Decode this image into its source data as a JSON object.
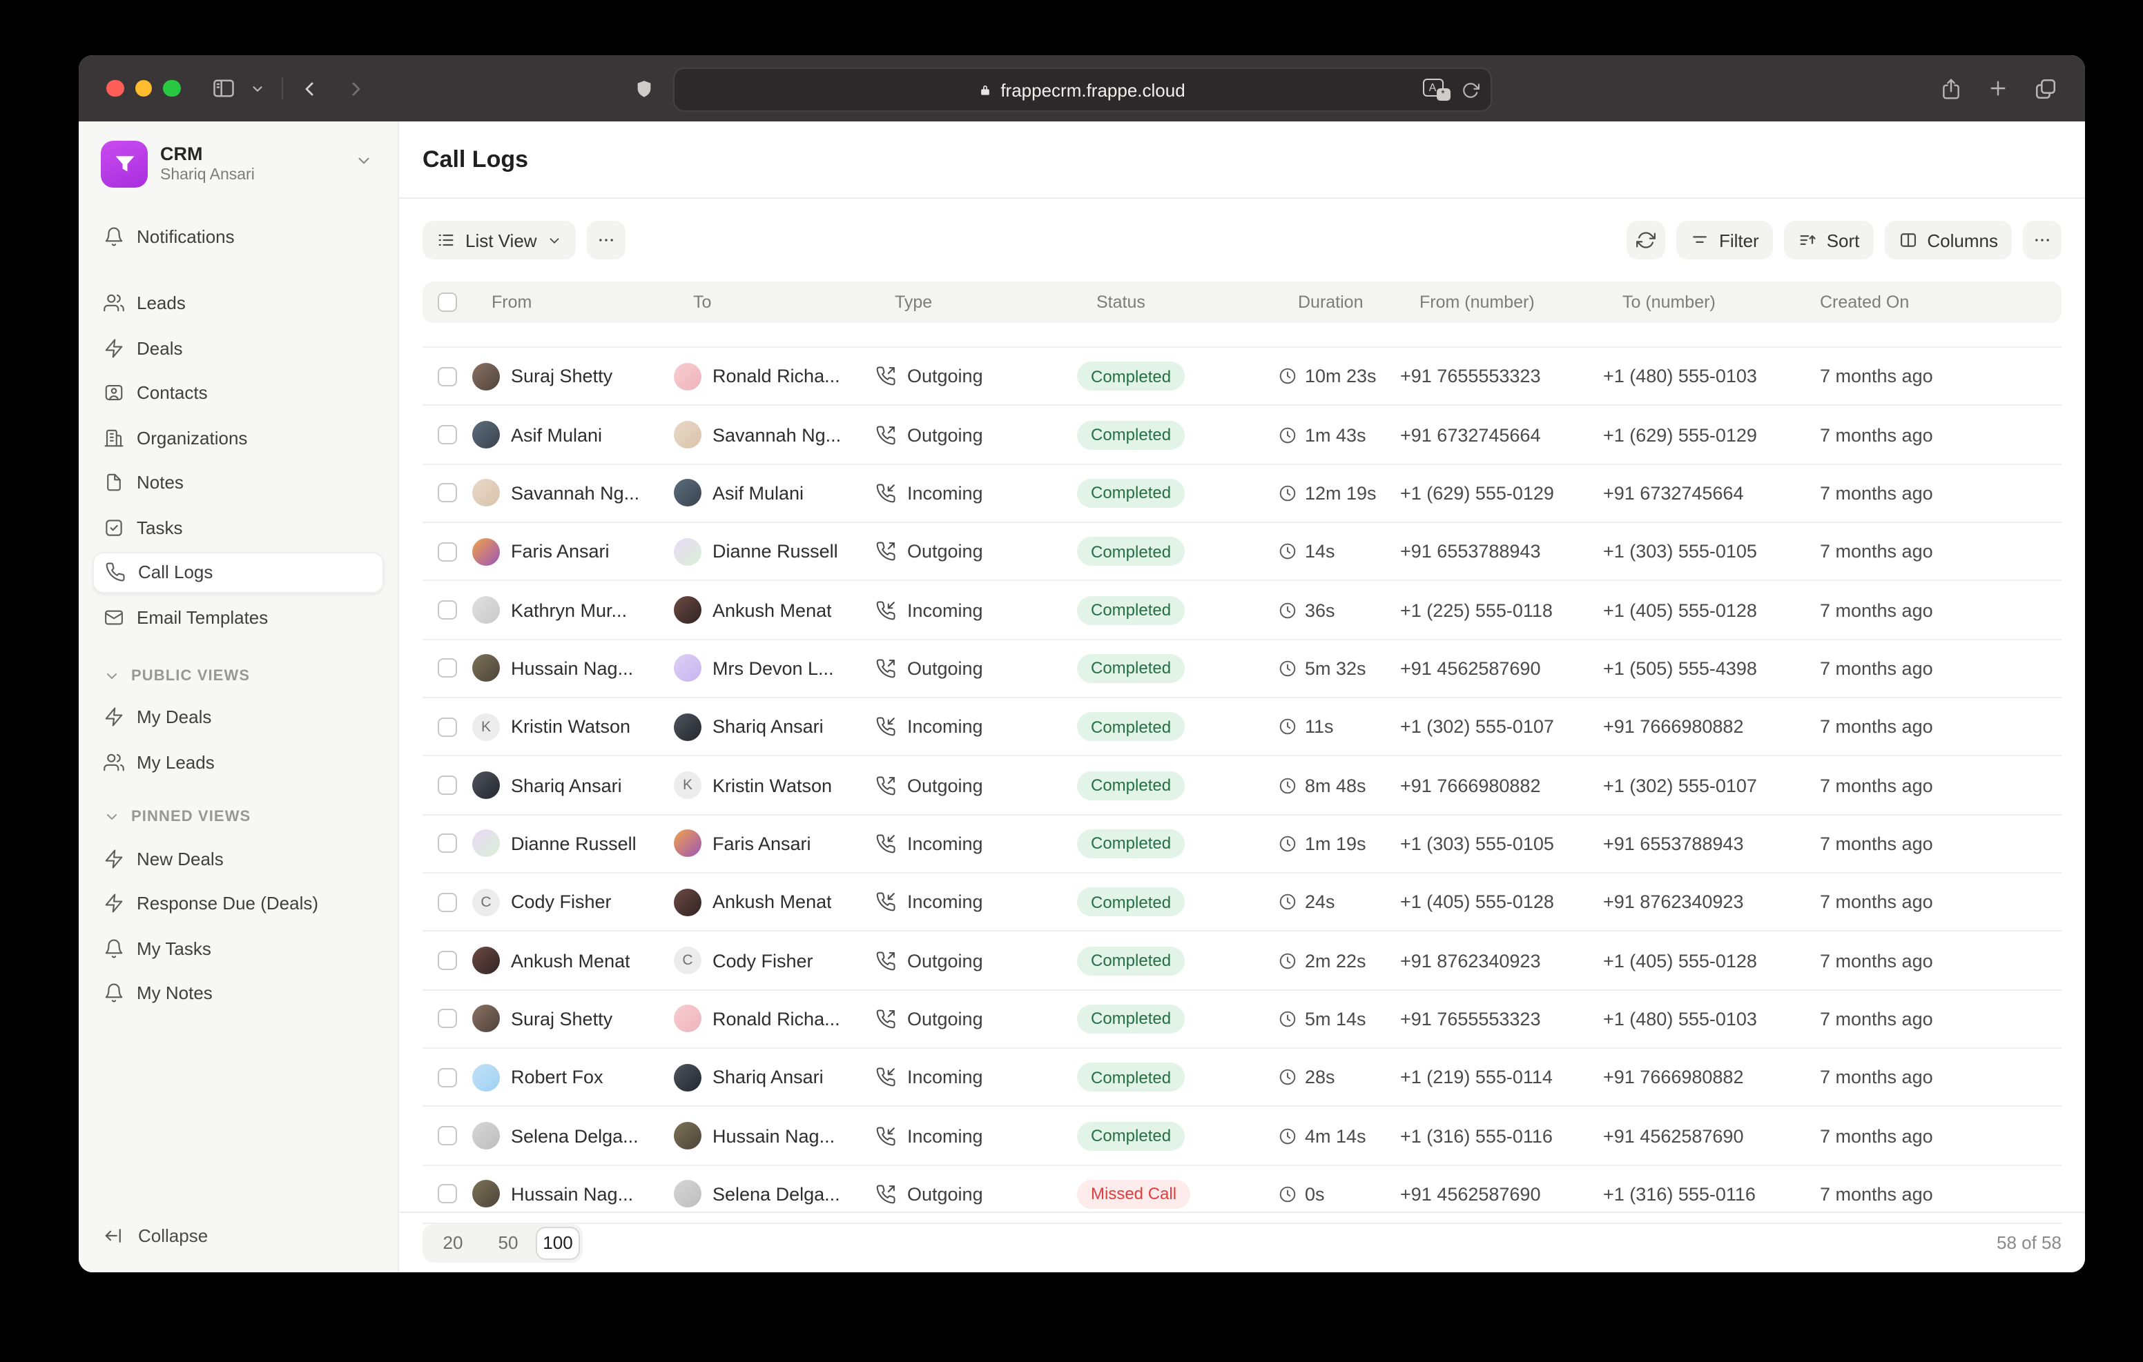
{
  "titlebar": {
    "url": "frappecrm.frappe.cloud"
  },
  "sidebar": {
    "workspace": {
      "title": "CRM",
      "subtitle": "Shariq Ansari"
    },
    "notifications": {
      "label": "Notifications",
      "icon": "bell"
    },
    "main_items": [
      {
        "label": "Leads",
        "icon": "users"
      },
      {
        "label": "Deals",
        "icon": "zap"
      },
      {
        "label": "Contacts",
        "icon": "contact"
      },
      {
        "label": "Organizations",
        "icon": "building"
      },
      {
        "label": "Notes",
        "icon": "file"
      },
      {
        "label": "Tasks",
        "icon": "check"
      },
      {
        "label": "Call Logs",
        "icon": "phone",
        "active": true
      },
      {
        "label": "Email Templates",
        "icon": "mail"
      }
    ],
    "sections": [
      {
        "title": "PUBLIC VIEWS",
        "items": [
          {
            "label": "My Deals",
            "icon": "zap"
          },
          {
            "label": "My Leads",
            "icon": "users"
          }
        ]
      },
      {
        "title": "PINNED VIEWS",
        "items": [
          {
            "label": "New Deals",
            "icon": "zap"
          },
          {
            "label": "Response Due (Deals)",
            "icon": "zap"
          },
          {
            "label": "My Tasks",
            "icon": "bell"
          },
          {
            "label": "My Notes",
            "icon": "bell"
          }
        ]
      }
    ],
    "collapse_label": "Collapse"
  },
  "header": {
    "title": "Call Logs"
  },
  "toolbar": {
    "view_label": "List View",
    "filter": "Filter",
    "sort": "Sort",
    "columns": "Columns"
  },
  "table": {
    "columns": [
      "",
      "From",
      "To",
      "Type",
      "Status",
      "Duration",
      "From (number)",
      "To (number)",
      "Created On"
    ],
    "rows": [
      {
        "from": {
          "name": "Suraj Shetty",
          "avatar": {
            "kind": "photo",
            "colors": [
              "#8a7263",
              "#4f423b"
            ]
          }
        },
        "to": {
          "name": "Ronald Richa...",
          "avatar": {
            "kind": "photo",
            "colors": [
              "#f7cdd1",
              "#eeb4ba"
            ]
          }
        },
        "type": "Outgoing",
        "status": "Completed",
        "status_kind": "success",
        "duration": "10m 23s",
        "from_number": "+91 7655553323",
        "to_number": "+1 (480) 555-0103",
        "created": "7 months ago"
      },
      {
        "from": {
          "name": "Asif Mulani",
          "avatar": {
            "kind": "photo",
            "colors": [
              "#5d6d7c",
              "#39434e"
            ]
          }
        },
        "to": {
          "name": "Savannah Ng...",
          "avatar": {
            "kind": "photo",
            "colors": [
              "#e8d9c8",
              "#d9c3ab"
            ]
          }
        },
        "type": "Outgoing",
        "status": "Completed",
        "status_kind": "success",
        "duration": "1m 43s",
        "from_number": "+91 6732745664",
        "to_number": "+1 (629) 555-0129",
        "created": "7 months ago"
      },
      {
        "from": {
          "name": "Savannah Ng...",
          "avatar": {
            "kind": "photo",
            "colors": [
              "#e8d9c8",
              "#d9c3ab"
            ]
          }
        },
        "to": {
          "name": "Asif Mulani",
          "avatar": {
            "kind": "photo",
            "colors": [
              "#5d6d7c",
              "#39434e"
            ]
          }
        },
        "type": "Incoming",
        "status": "Completed",
        "status_kind": "success",
        "duration": "12m 19s",
        "from_number": "+1 (629) 555-0129",
        "to_number": "+91 6732745664",
        "created": "7 months ago"
      },
      {
        "from": {
          "name": "Faris Ansari",
          "avatar": {
            "kind": "photo",
            "colors": [
              "#f0a24a",
              "#9c55b8"
            ]
          }
        },
        "to": {
          "name": "Dianne Russell",
          "avatar": {
            "kind": "photo",
            "colors": [
              "#ead9f8",
              "#d9f0d4"
            ]
          }
        },
        "type": "Outgoing",
        "status": "Completed",
        "status_kind": "success",
        "duration": "14s",
        "from_number": "+91 6553788943",
        "to_number": "+1 (303) 555-0105",
        "created": "7 months ago"
      },
      {
        "from": {
          "name": "Kathryn Mur...",
          "avatar": {
            "kind": "photo",
            "colors": [
              "#e0e0e0",
              "#c9c9c9"
            ]
          }
        },
        "to": {
          "name": "Ankush Menat",
          "avatar": {
            "kind": "photo",
            "colors": [
              "#6d4a45",
              "#2f2422"
            ]
          }
        },
        "type": "Incoming",
        "status": "Completed",
        "status_kind": "success",
        "duration": "36s",
        "from_number": "+1 (225) 555-0118",
        "to_number": "+1 (405) 555-0128",
        "created": "7 months ago"
      },
      {
        "from": {
          "name": "Hussain Nag...",
          "avatar": {
            "kind": "photo",
            "colors": [
              "#7d7257",
              "#4c443a"
            ]
          }
        },
        "to": {
          "name": "Mrs Devon L...",
          "avatar": {
            "kind": "photo",
            "colors": [
              "#ddd0f5",
              "#c5b4ef"
            ]
          }
        },
        "type": "Outgoing",
        "status": "Completed",
        "status_kind": "success",
        "duration": "5m 32s",
        "from_number": "+91 4562587690",
        "to_number": "+1 (505) 555-4398",
        "created": "7 months ago"
      },
      {
        "from": {
          "name": "Kristin Watson",
          "avatar": {
            "kind": "letter",
            "letter": "K",
            "bg": "#ececec"
          }
        },
        "to": {
          "name": "Shariq Ansari",
          "avatar": {
            "kind": "photo",
            "colors": [
              "#4e545e",
              "#23272e"
            ]
          }
        },
        "type": "Incoming",
        "status": "Completed",
        "status_kind": "success",
        "duration": "11s",
        "from_number": "+1 (302) 555-0107",
        "to_number": "+91 7666980882",
        "created": "7 months ago"
      },
      {
        "from": {
          "name": "Shariq Ansari",
          "avatar": {
            "kind": "photo",
            "colors": [
              "#4e545e",
              "#23272e"
            ]
          }
        },
        "to": {
          "name": "Kristin Watson",
          "avatar": {
            "kind": "letter",
            "letter": "K",
            "bg": "#ececec"
          }
        },
        "type": "Outgoing",
        "status": "Completed",
        "status_kind": "success",
        "duration": "8m 48s",
        "from_number": "+91 7666980882",
        "to_number": "+1 (302) 555-0107",
        "created": "7 months ago"
      },
      {
        "from": {
          "name": "Dianne Russell",
          "avatar": {
            "kind": "photo",
            "colors": [
              "#ead9f8",
              "#d9f0d4"
            ]
          }
        },
        "to": {
          "name": "Faris Ansari",
          "avatar": {
            "kind": "photo",
            "colors": [
              "#f0a24a",
              "#9c55b8"
            ]
          }
        },
        "type": "Incoming",
        "status": "Completed",
        "status_kind": "success",
        "duration": "1m 19s",
        "from_number": "+1 (303) 555-0105",
        "to_number": "+91 6553788943",
        "created": "7 months ago"
      },
      {
        "from": {
          "name": "Cody Fisher",
          "avatar": {
            "kind": "letter",
            "letter": "C",
            "bg": "#ececec"
          }
        },
        "to": {
          "name": "Ankush Menat",
          "avatar": {
            "kind": "photo",
            "colors": [
              "#6d4a45",
              "#2f2422"
            ]
          }
        },
        "type": "Incoming",
        "status": "Completed",
        "status_kind": "success",
        "duration": "24s",
        "from_number": "+1 (405) 555-0128",
        "to_number": "+91 8762340923",
        "created": "7 months ago"
      },
      {
        "from": {
          "name": "Ankush Menat",
          "avatar": {
            "kind": "photo",
            "colors": [
              "#6d4a45",
              "#2f2422"
            ]
          }
        },
        "to": {
          "name": "Cody Fisher",
          "avatar": {
            "kind": "letter",
            "letter": "C",
            "bg": "#ececec"
          }
        },
        "type": "Outgoing",
        "status": "Completed",
        "status_kind": "success",
        "duration": "2m 22s",
        "from_number": "+91 8762340923",
        "to_number": "+1 (405) 555-0128",
        "created": "7 months ago"
      },
      {
        "from": {
          "name": "Suraj Shetty",
          "avatar": {
            "kind": "photo",
            "colors": [
              "#8a7263",
              "#4f423b"
            ]
          }
        },
        "to": {
          "name": "Ronald Richa...",
          "avatar": {
            "kind": "photo",
            "colors": [
              "#f7cdd1",
              "#eeb4ba"
            ]
          }
        },
        "type": "Outgoing",
        "status": "Completed",
        "status_kind": "success",
        "duration": "5m 14s",
        "from_number": "+91 7655553323",
        "to_number": "+1 (480) 555-0103",
        "created": "7 months ago"
      },
      {
        "from": {
          "name": "Robert Fox",
          "avatar": {
            "kind": "photo",
            "colors": [
              "#c2e2f7",
              "#9fd0f2"
            ]
          }
        },
        "to": {
          "name": "Shariq Ansari",
          "avatar": {
            "kind": "photo",
            "colors": [
              "#4e545e",
              "#23272e"
            ]
          }
        },
        "type": "Incoming",
        "status": "Completed",
        "status_kind": "success",
        "duration": "28s",
        "from_number": "+1 (219) 555-0114",
        "to_number": "+91 7666980882",
        "created": "7 months ago"
      },
      {
        "from": {
          "name": "Selena Delga...",
          "avatar": {
            "kind": "photo",
            "colors": [
              "#d6d6d6",
              "#bdbdbd"
            ]
          }
        },
        "to": {
          "name": "Hussain Nag...",
          "avatar": {
            "kind": "photo",
            "colors": [
              "#7d7257",
              "#4c443a"
            ]
          }
        },
        "type": "Incoming",
        "status": "Completed",
        "status_kind": "success",
        "duration": "4m 14s",
        "from_number": "+1 (316) 555-0116",
        "to_number": "+91 4562587690",
        "created": "7 months ago"
      },
      {
        "from": {
          "name": "Hussain Nag...",
          "avatar": {
            "kind": "photo",
            "colors": [
              "#7d7257",
              "#4c443a"
            ]
          }
        },
        "to": {
          "name": "Selena Delga...",
          "avatar": {
            "kind": "photo",
            "colors": [
              "#d6d6d6",
              "#bdbdbd"
            ]
          }
        },
        "type": "Outgoing",
        "status": "Missed Call",
        "status_kind": "danger",
        "duration": "0s",
        "from_number": "+91 4562587690",
        "to_number": "+1 (316) 555-0116",
        "created": "7 months ago"
      }
    ]
  },
  "footer": {
    "page_sizes": [
      "20",
      "50",
      "100"
    ],
    "active_page_size": "100",
    "count_label": "58 of 58"
  },
  "colors": {
    "accent_purple": "#b53ae0",
    "status_success_bg": "#e2f3e7",
    "status_success_fg": "#256f45",
    "status_danger_bg": "#fdeceb",
    "status_danger_fg": "#e03e3e",
    "traffic_red": "#ff5f57",
    "traffic_yellow": "#febc2e",
    "traffic_green": "#28c840"
  }
}
